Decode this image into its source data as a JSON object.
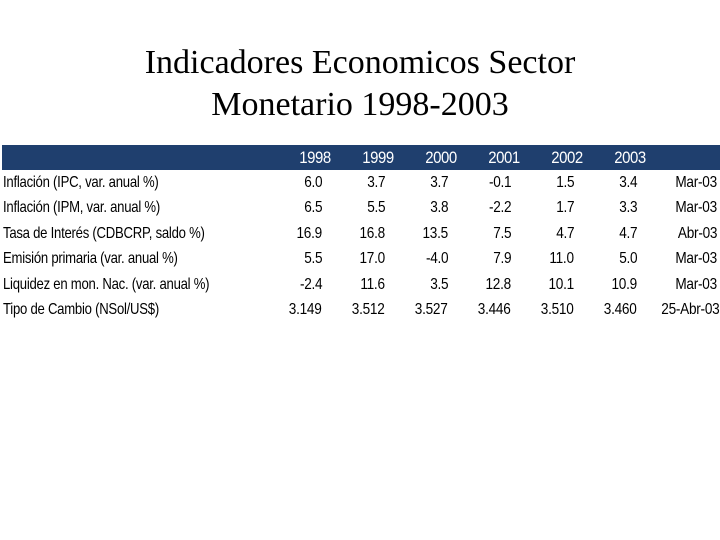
{
  "title": {
    "line1": "Indicadores Economicos Sector",
    "line2": "Monetario 1998-2003"
  },
  "colors": {
    "header_background": "#1f3f6e",
    "header_text": "#ffffff",
    "body_text": "#000000"
  },
  "table": {
    "columns": [
      "1998",
      "1999",
      "2000",
      "2001",
      "2002",
      "2003"
    ],
    "rows": [
      {
        "label": "Inflación (IPC, var. anual %)",
        "values": [
          "6.0",
          "3.7",
          "3.7",
          "-0.1",
          "1.5",
          "3.4"
        ],
        "date": "Mar-03"
      },
      {
        "label": "Inflación (IPM, var. anual %)",
        "values": [
          "6.5",
          "5.5",
          "3.8",
          "-2.2",
          "1.7",
          "3.3"
        ],
        "date": "Mar-03"
      },
      {
        "label": "Tasa de Interés (CDBCRP, saldo %)",
        "values": [
          "16.9",
          "16.8",
          "13.5",
          "7.5",
          "4.7",
          "4.7"
        ],
        "date": "Abr-03"
      },
      {
        "label": "Emisión primaria (var. anual %)",
        "values": [
          "5.5",
          "17.0",
          "-4.0",
          "7.9",
          "11.0",
          "5.0"
        ],
        "date": "Mar-03"
      },
      {
        "label": "Liquidez en mon. Nac. (var. anual %)",
        "values": [
          "-2.4",
          "11.6",
          "3.5",
          "12.8",
          "10.1",
          "10.9"
        ],
        "date": "Mar-03"
      },
      {
        "label": "Tipo de Cambio (NSol/US$)",
        "values": [
          "3.149",
          "3.512",
          "3.527",
          "3.446",
          "3.510",
          "3.460"
        ],
        "date": "25-Abr-03"
      }
    ]
  }
}
